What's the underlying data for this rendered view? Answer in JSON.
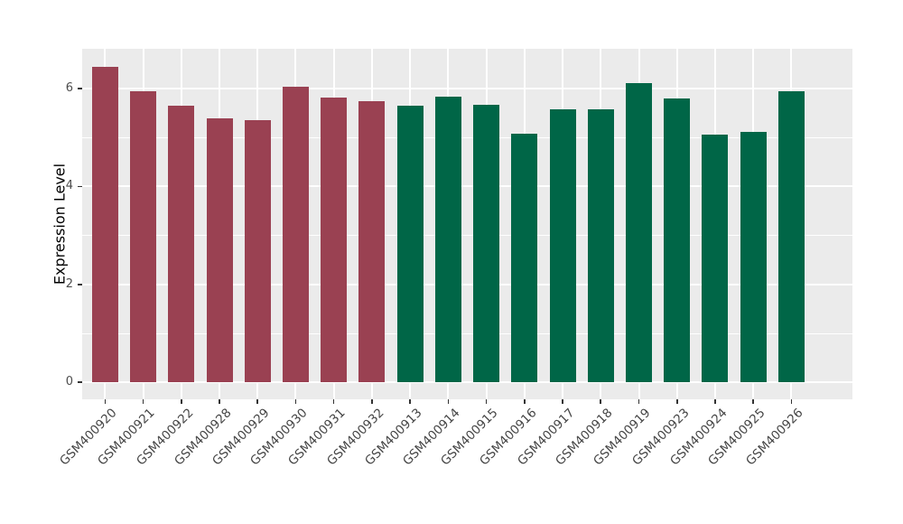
{
  "chart_data": {
    "type": "bar",
    "title": "",
    "xlabel": "",
    "ylabel": "Expression Level",
    "categories": [
      "GSM400920",
      "GSM400921",
      "GSM400922",
      "GSM400928",
      "GSM400929",
      "GSM400930",
      "GSM400931",
      "GSM400932",
      "GSM400913",
      "GSM400914",
      "GSM400915",
      "GSM400916",
      "GSM400917",
      "GSM400918",
      "GSM400919",
      "GSM400923",
      "GSM400924",
      "GSM400925",
      "GSM400926"
    ],
    "values": [
      6.45,
      5.95,
      5.64,
      5.39,
      5.36,
      6.03,
      5.82,
      5.74,
      5.64,
      5.83,
      5.67,
      5.07,
      5.58,
      5.58,
      6.11,
      5.8,
      5.05,
      5.11,
      5.95
    ],
    "bar_groups": [
      "A",
      "A",
      "A",
      "A",
      "A",
      "A",
      "A",
      "A",
      "B",
      "B",
      "B",
      "B",
      "B",
      "B",
      "B",
      "B",
      "B",
      "B",
      "B"
    ],
    "group_colors": {
      "A": "#9a4152",
      "B": "#006647"
    },
    "y_axis": {
      "ticks": [
        0,
        2,
        4,
        6
      ],
      "minor_ticks": [
        1,
        3,
        5
      ],
      "range": [
        -0.345,
        6.81
      ]
    },
    "x_tick_angle_deg": 45,
    "legend_position": "none",
    "grid": "on",
    "panel_background": "#ebebeb",
    "grid_color": "#ffffff",
    "tick_color": "#333333",
    "tick_label_color": "#4d4d4d",
    "axis_title_color": "#000000",
    "figure_background": "#ffffff"
  }
}
